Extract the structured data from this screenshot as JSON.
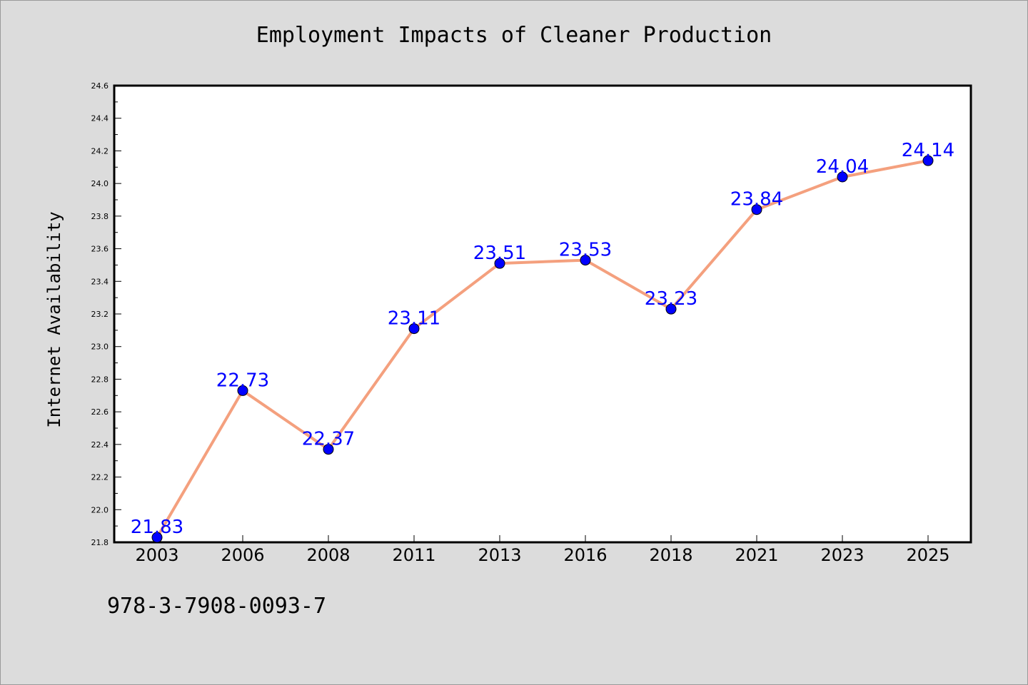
{
  "code_text": "978-3-7908-0093-7",
  "colors": {
    "line": "#f4a07e",
    "marker": "#0000ff",
    "label": "#0000ff",
    "background": "#dcdcdc",
    "plot_background": "#ffffff"
  },
  "chart_data": {
    "type": "line",
    "title": "Employment Impacts of Cleaner Production",
    "xlabel": "",
    "ylabel": "Internet Availability",
    "categories": [
      "2003",
      "2006",
      "2008",
      "2011",
      "2013",
      "2016",
      "2018",
      "2021",
      "2023",
      "2025"
    ],
    "values": [
      21.83,
      22.73,
      22.37,
      23.11,
      23.51,
      23.53,
      23.23,
      23.84,
      24.04,
      24.14
    ],
    "data_labels": [
      "21.83",
      "22.73",
      "22.37",
      "23.11",
      "23.51",
      "23.53",
      "23.23",
      "23.84",
      "24.04",
      "24.14"
    ],
    "ylim": [
      21.8,
      24.6
    ],
    "yticks": [
      "21.8",
      "22.0",
      "22.2",
      "22.4",
      "22.6",
      "22.8",
      "23.0",
      "23.2",
      "23.4",
      "23.6",
      "23.8",
      "24.0",
      "24.2",
      "24.4",
      "24.6"
    ],
    "grid": false,
    "legend": "none"
  }
}
